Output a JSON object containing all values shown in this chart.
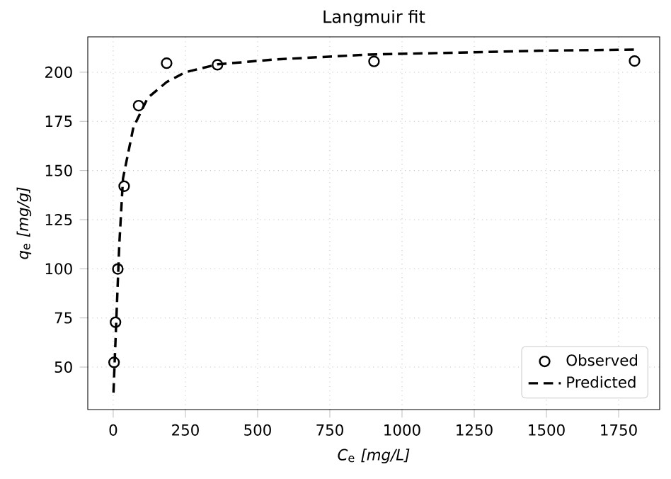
{
  "chart_data": {
    "type": "scatter",
    "title": "Langmuir fit",
    "xlabel": "*C*$_{e}$ *[mg/L]*",
    "ylabel": "*q*$_{e}$ *[mg/g]*",
    "series": [
      {
        "name": "Observed",
        "type": "scatter",
        "marker": "circle",
        "color": "#000000",
        "x": [
          3,
          8,
          16,
          38,
          88,
          185,
          361,
          903,
          1805
        ],
        "values": [
          52.4,
          72.8,
          99.9,
          142,
          183,
          204.6,
          203.8,
          205.5,
          205.7
        ]
      },
      {
        "name": "Predicted",
        "type": "line",
        "line_style": "dashed",
        "color": "#000000",
        "x": [
          1,
          10,
          21,
          34,
          70,
          120,
          185,
          250,
          361,
          560,
          888,
          1200,
          1500,
          1805
        ],
        "values": [
          37,
          71,
          112,
          146,
          172,
          187,
          195,
          200,
          204,
          206.5,
          209,
          210,
          211,
          211.5
        ]
      }
    ],
    "xlim": [
      -88,
      1892
    ],
    "ylim": [
      28.4,
      218
    ],
    "xticks": [
      0,
      250,
      500,
      750,
      1000,
      1250,
      1500,
      1750
    ],
    "yticks": [
      50,
      75,
      100,
      125,
      150,
      175,
      200
    ],
    "grid": true,
    "legend": "bottom right"
  }
}
